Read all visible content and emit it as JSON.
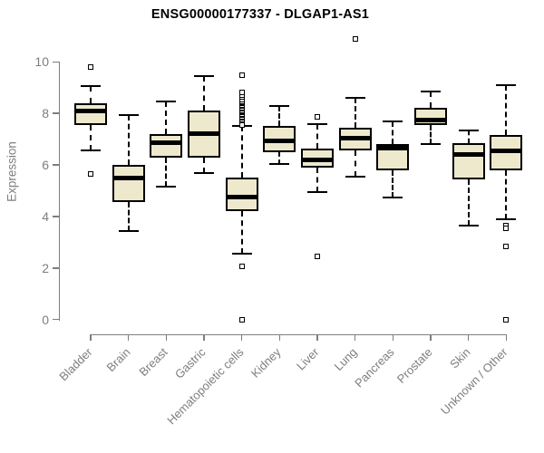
{
  "chart_data": {
    "type": "box",
    "title": "ENSG00000177337 - DLGAP1-AS1",
    "ylabel": "Expression",
    "xlabel": "",
    "ylim": [
      0,
      11
    ],
    "yticks": [
      0,
      2,
      4,
      6,
      8,
      10
    ],
    "grid": false,
    "legend": "none",
    "categories": [
      "Bladder",
      "Brain",
      "Breast",
      "Gastric",
      "Hematopoietic cells",
      "Kidney",
      "Liver",
      "Lung",
      "Pancreas",
      "Prostate",
      "Skin",
      "Unknown / Other"
    ],
    "series": [
      {
        "name": "Bladder",
        "whisker_low": 6.55,
        "q1": 7.55,
        "median": 8.1,
        "q3": 8.4,
        "whisker_high": 9.05,
        "outliers": [
          9.8,
          5.65
        ]
      },
      {
        "name": "Brain",
        "whisker_low": 3.45,
        "q1": 4.55,
        "median": 5.5,
        "q3": 6.0,
        "whisker_high": 7.95,
        "outliers": []
      },
      {
        "name": "Breast",
        "whisker_low": 5.15,
        "q1": 6.3,
        "median": 6.85,
        "q3": 7.2,
        "whisker_high": 8.45,
        "outliers": []
      },
      {
        "name": "Gastric",
        "whisker_low": 5.7,
        "q1": 6.3,
        "median": 7.2,
        "q3": 8.1,
        "whisker_high": 9.45,
        "outliers": []
      },
      {
        "name": "Hematopoietic cells",
        "whisker_low": 2.55,
        "q1": 4.2,
        "median": 4.75,
        "q3": 5.5,
        "whisker_high": 7.5,
        "outliers": [
          9.5,
          8.8,
          8.65,
          8.55,
          8.45,
          8.35,
          8.3,
          8.25,
          8.2,
          8.15,
          8.1,
          8.05,
          8.0,
          7.95,
          7.9,
          7.85,
          7.8,
          7.75,
          7.7,
          7.65,
          7.6,
          7.55,
          2.05,
          0.0
        ]
      },
      {
        "name": "Kidney",
        "whisker_low": 6.05,
        "q1": 6.5,
        "median": 6.95,
        "q3": 7.5,
        "whisker_high": 8.3,
        "outliers": []
      },
      {
        "name": "Liver",
        "whisker_low": 4.95,
        "q1": 5.9,
        "median": 6.2,
        "q3": 6.65,
        "whisker_high": 7.6,
        "outliers": [
          7.85,
          2.45
        ]
      },
      {
        "name": "Lung",
        "whisker_low": 5.55,
        "q1": 6.55,
        "median": 7.05,
        "q3": 7.45,
        "whisker_high": 8.6,
        "outliers": [
          10.9
        ]
      },
      {
        "name": "Pancreas",
        "whisker_low": 4.75,
        "q1": 5.8,
        "median": 6.65,
        "q3": 6.8,
        "whisker_high": 7.7,
        "outliers": []
      },
      {
        "name": "Prostate",
        "whisker_low": 6.8,
        "q1": 7.55,
        "median": 7.75,
        "q3": 8.2,
        "whisker_high": 8.85,
        "outliers": []
      },
      {
        "name": "Skin",
        "whisker_low": 3.65,
        "q1": 5.45,
        "median": 6.4,
        "q3": 6.85,
        "whisker_high": 7.35,
        "outliers": []
      },
      {
        "name": "Unknown / Other",
        "whisker_low": 3.9,
        "q1": 5.8,
        "median": 6.55,
        "q3": 7.15,
        "whisker_high": 9.1,
        "outliers": [
          3.65,
          3.55,
          2.85,
          0.0
        ]
      }
    ],
    "colors": {
      "box_fill": "#EEE8CD",
      "line": "#000000",
      "axis": "#7E7E7E",
      "title_color": "#000000",
      "background": "#FFFFFF"
    }
  }
}
